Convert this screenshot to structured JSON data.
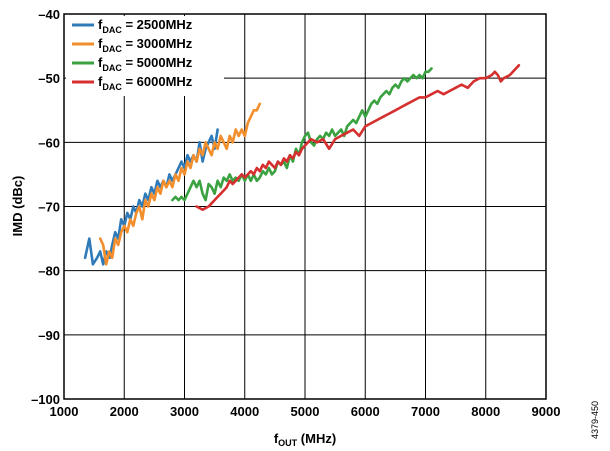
{
  "chart_data": {
    "type": "line",
    "xlabel": {
      "main": "f",
      "sub": "OUT",
      "rest": " (MHz)"
    },
    "ylabel": "IMD (dBc)",
    "xlim": [
      1000,
      9000
    ],
    "ylim": [
      -100,
      -40
    ],
    "xticks": [
      1000,
      2000,
      3000,
      4000,
      5000,
      6000,
      7000,
      8000,
      9000
    ],
    "yticks": [
      -40,
      -50,
      -60,
      -70,
      -80,
      -90,
      -100
    ],
    "xtick_labels": [
      "1000",
      "2000",
      "3000",
      "4000",
      "5000",
      "6000",
      "7000",
      "8000",
      "9000"
    ],
    "ytick_labels": [
      "–40",
      "–50",
      "–60",
      "–70",
      "–80",
      "–90",
      "–100"
    ],
    "grid": true,
    "legend_position": "top-left",
    "figure_id": "4379-450",
    "series": [
      {
        "name": "f_DAC = 2500MHz",
        "legend": {
          "main": "f",
          "sub": "DAC",
          "rest": " = 2500MHz"
        },
        "color": "#2f7ab9",
        "x": [
          1350,
          1420,
          1480,
          1550,
          1600,
          1650,
          1700,
          1760,
          1800,
          1850,
          1900,
          1950,
          2000,
          2050,
          2100,
          2150,
          2200,
          2250,
          2300,
          2350,
          2400,
          2450,
          2500,
          2550,
          2600,
          2650,
          2700,
          2750,
          2800,
          2850,
          2900,
          2950,
          3000,
          3050,
          3100,
          3150,
          3200,
          3250,
          3300,
          3350,
          3400,
          3450,
          3500,
          3550
        ],
        "y": [
          -78,
          -75,
          -79,
          -78,
          -77,
          -79,
          -77,
          -78,
          -76,
          -74,
          -75,
          -72,
          -73,
          -71,
          -72,
          -70,
          -71,
          -69,
          -70,
          -68,
          -69,
          -67,
          -68,
          -66,
          -67,
          -66,
          -67,
          -65,
          -66,
          -65,
          -64,
          -63,
          -64,
          -62,
          -63,
          -62,
          -63,
          -60,
          -63,
          -61,
          -60,
          -59,
          -61,
          -58
        ]
      },
      {
        "name": "f_DAC = 3000MHz",
        "legend": {
          "main": "f",
          "sub": "DAC",
          "rest": " = 3000MHz"
        },
        "color": "#f28e2b",
        "x": [
          1600,
          1650,
          1700,
          1750,
          1800,
          1850,
          1900,
          1950,
          2000,
          2050,
          2100,
          2150,
          2200,
          2250,
          2300,
          2350,
          2400,
          2450,
          2500,
          2550,
          2600,
          2650,
          2700,
          2750,
          2800,
          2850,
          2900,
          2950,
          3000,
          3050,
          3100,
          3150,
          3200,
          3250,
          3300,
          3350,
          3400,
          3450,
          3500,
          3550,
          3600,
          3650,
          3700,
          3750,
          3800,
          3850,
          3900,
          3950,
          4000,
          4050,
          4100,
          4150,
          4200,
          4250
        ],
        "y": [
          -75,
          -76,
          -79,
          -77,
          -78,
          -75,
          -76,
          -74,
          -73,
          -74,
          -72,
          -73,
          -71,
          -70,
          -72,
          -69,
          -70,
          -68,
          -69,
          -67,
          -68,
          -66,
          -67,
          -66,
          -67,
          -65,
          -66,
          -64,
          -65,
          -63,
          -64,
          -62,
          -63,
          -61,
          -62,
          -60,
          -61,
          -62,
          -60,
          -61,
          -59,
          -60,
          -61,
          -59,
          -60,
          -58,
          -59,
          -58,
          -59,
          -57,
          -56,
          -55,
          -55,
          -54
        ]
      },
      {
        "name": "f_DAC = 5000MHz",
        "legend": {
          "main": "f",
          "sub": "DAC",
          "rest": " = 5000MHz"
        },
        "color": "#3aa241",
        "x": [
          2800,
          2850,
          2900,
          2950,
          3000,
          3050,
          3100,
          3150,
          3200,
          3250,
          3300,
          3350,
          3400,
          3450,
          3500,
          3550,
          3600,
          3650,
          3700,
          3750,
          3800,
          3850,
          3900,
          3950,
          4000,
          4050,
          4100,
          4150,
          4200,
          4250,
          4300,
          4350,
          4400,
          4450,
          4500,
          4550,
          4600,
          4650,
          4700,
          4750,
          4800,
          4850,
          4900,
          4950,
          5000,
          5050,
          5100,
          5150,
          5200,
          5250,
          5300,
          5350,
          5400,
          5450,
          5500,
          5550,
          5600,
          5650,
          5700,
          5750,
          5800,
          5850,
          5900,
          5950,
          6000,
          6050,
          6100,
          6150,
          6200,
          6250,
          6300,
          6350,
          6400,
          6450,
          6500,
          6550,
          6600,
          6650,
          6700,
          6750,
          6800,
          6850,
          6900,
          6950,
          7000,
          7050,
          7100
        ],
        "y": [
          -69,
          -68.5,
          -69,
          -68.5,
          -69,
          -68,
          -67,
          -66,
          -67,
          -66,
          -68,
          -69,
          -66.5,
          -67,
          -68,
          -66,
          -67,
          -65.5,
          -66,
          -65,
          -66,
          -65.5,
          -66,
          -65,
          -66,
          -65,
          -66,
          -65,
          -66,
          -65.5,
          -64.5,
          -65,
          -64,
          -65,
          -64.5,
          -63,
          -63.5,
          -63,
          -64,
          -62,
          -63,
          -61,
          -62,
          -60,
          -59,
          -58.5,
          -60,
          -60.5,
          -59.5,
          -59,
          -59.5,
          -58.5,
          -59,
          -58,
          -59,
          -58.5,
          -58,
          -59,
          -57.5,
          -57,
          -56.5,
          -57,
          -56,
          -55,
          -56,
          -55,
          -54,
          -53.5,
          -54,
          -53,
          -52.5,
          -52,
          -52.5,
          -51.5,
          -51,
          -51.5,
          -50.5,
          -50,
          -50.5,
          -50,
          -49.5,
          -50,
          -49.5,
          -50,
          -49,
          -49,
          -48.5
        ]
      },
      {
        "name": "f_DAC = 6000MHz",
        "legend": {
          "main": "f",
          "sub": "DAC",
          "rest": " = 6000MHz"
        },
        "color": "#d62f2f",
        "x": [
          3200,
          3300,
          3400,
          3450,
          3500,
          3550,
          3600,
          3650,
          3700,
          3750,
          3800,
          3850,
          3900,
          3950,
          4000,
          4050,
          4100,
          4150,
          4200,
          4250,
          4300,
          4350,
          4400,
          4450,
          4500,
          4550,
          4600,
          4650,
          4700,
          4750,
          4800,
          4850,
          4900,
          4950,
          5000,
          5050,
          5100,
          5200,
          5300,
          5400,
          5500,
          5600,
          5700,
          5800,
          5900,
          6000,
          6100,
          6200,
          6300,
          6400,
          6500,
          6600,
          6700,
          6800,
          6900,
          7000,
          7100,
          7200,
          7300,
          7400,
          7500,
          7600,
          7700,
          7800,
          7900,
          8000,
          8100,
          8150,
          8200,
          8250,
          8300,
          8400,
          8500,
          8550
        ],
        "y": [
          -70,
          -70.5,
          -70,
          -69.5,
          -69,
          -68.5,
          -68,
          -67.5,
          -67,
          -66,
          -66.5,
          -66,
          -65.5,
          -65,
          -65.5,
          -65,
          -64.5,
          -65,
          -64,
          -64.5,
          -63.5,
          -64,
          -63,
          -63.5,
          -64,
          -63,
          -63.5,
          -62.5,
          -63,
          -62,
          -62.5,
          -61.5,
          -62,
          -61,
          -60.5,
          -60,
          -59.5,
          -60,
          -59.5,
          -61,
          -59.5,
          -59,
          -58.5,
          -58,
          -59,
          -57.5,
          -57,
          -56.5,
          -56,
          -55.5,
          -55,
          -54.5,
          -54,
          -53.5,
          -53,
          -53,
          -52.5,
          -52,
          -52.5,
          -52,
          -51.5,
          -51,
          -51.5,
          -50.5,
          -50,
          -50,
          -49.5,
          -49,
          -49.5,
          -50.5,
          -50,
          -49.5,
          -48.5,
          -48
        ]
      }
    ]
  }
}
